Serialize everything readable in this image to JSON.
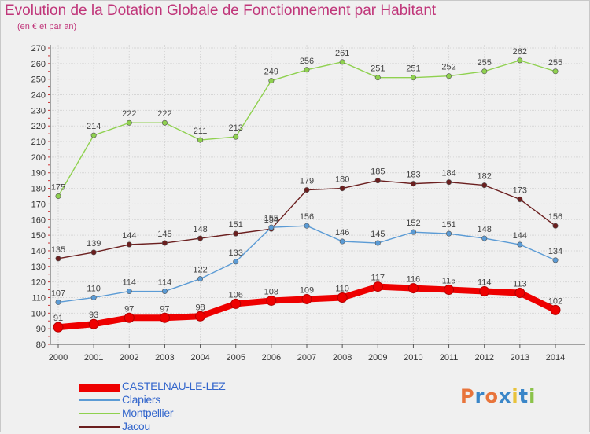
{
  "header": {
    "title": "Evolution de la Dotation Globale de Fonctionnement par Habitant",
    "subtitle": "(en € et par an)"
  },
  "logo": {
    "text": "Proxiti",
    "colors": [
      "#e8743b",
      "#3a86c8",
      "#e8743b",
      "#3a86c8",
      "#e8c23b",
      "#3a86c8",
      "#8bc34a"
    ]
  },
  "chart_data": {
    "type": "line",
    "title": "Evolution de la Dotation Globale de Fonctionnement par Habitant",
    "subtitle": "(en € et par an)",
    "xlabel": "",
    "ylabel": "",
    "x": [
      "2000",
      "2001",
      "2002",
      "2003",
      "2004",
      "2005",
      "2006",
      "2007",
      "2008",
      "2009",
      "2010",
      "2011",
      "2012",
      "2013",
      "2014"
    ],
    "ylim": [
      80,
      270
    ],
    "yticks": [
      80,
      90,
      100,
      110,
      120,
      130,
      140,
      150,
      160,
      170,
      180,
      190,
      200,
      210,
      220,
      230,
      240,
      250,
      260,
      270
    ],
    "grid": true,
    "legend_position": "bottom-left",
    "series": [
      {
        "name": "CASTELNAU-LE-LEZ",
        "color": "#ee0000",
        "values": [
          91,
          93,
          97,
          97,
          98,
          106,
          108,
          109,
          110,
          117,
          116,
          115,
          114,
          113,
          102
        ]
      },
      {
        "name": "Clapiers",
        "color": "#5b9bd5",
        "values": [
          107,
          110,
          114,
          114,
          122,
          133,
          155,
          156,
          146,
          145,
          152,
          151,
          148,
          144,
          134
        ]
      },
      {
        "name": "Montpellier",
        "color": "#8fd14f",
        "values": [
          175,
          214,
          222,
          222,
          211,
          213,
          249,
          256,
          261,
          251,
          251,
          252,
          255,
          262,
          255
        ]
      },
      {
        "name": "Jacou",
        "color": "#6b1f1f",
        "values": [
          135,
          139,
          144,
          145,
          148,
          151,
          154,
          179,
          180,
          185,
          183,
          184,
          182,
          173,
          156
        ]
      }
    ]
  }
}
